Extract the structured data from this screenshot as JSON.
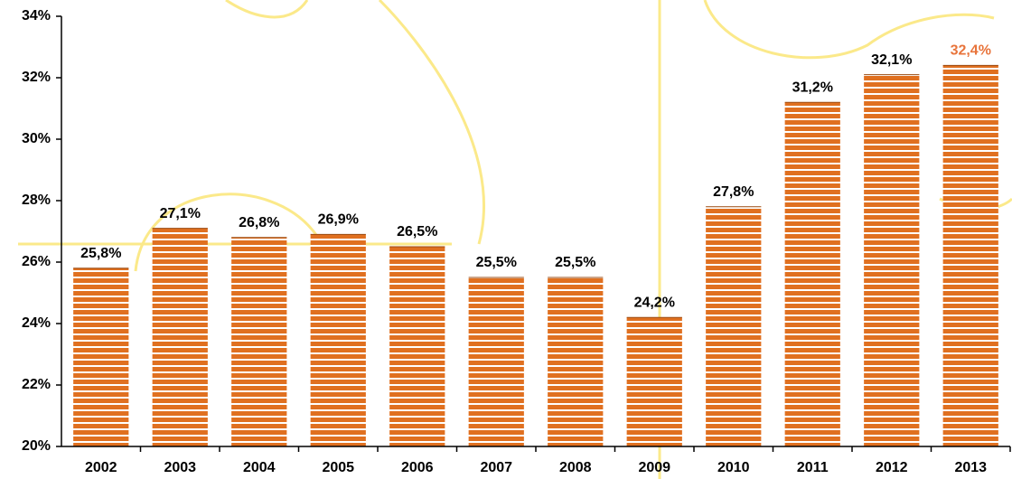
{
  "chart_data": {
    "type": "bar",
    "categories": [
      "2002",
      "2003",
      "2004",
      "2005",
      "2006",
      "2007",
      "2008",
      "2009",
      "2010",
      "2011",
      "2012",
      "2013"
    ],
    "values": [
      25.8,
      27.1,
      26.8,
      26.9,
      26.5,
      25.5,
      25.5,
      24.2,
      27.8,
      31.2,
      32.1,
      32.4
    ],
    "value_labels": [
      "25,8%",
      "27,1%",
      "26,8%",
      "26,9%",
      "26,5%",
      "25,5%",
      "25,5%",
      "24,2%",
      "27,8%",
      "31,2%",
      "32,1%",
      "32,4%"
    ],
    "value_label_colors": [
      "#000000",
      "#000000",
      "#000000",
      "#000000",
      "#000000",
      "#000000",
      "#000000",
      "#000000",
      "#000000",
      "#000000",
      "#000000",
      "#e8743b"
    ],
    "color": "#e07020",
    "ylim": [
      20,
      34
    ],
    "yticks": [
      {
        "value": 20,
        "label": "20%"
      },
      {
        "value": 22,
        "label": "22%"
      },
      {
        "value": 24,
        "label": "24%"
      },
      {
        "value": 26,
        "label": "26%"
      },
      {
        "value": 28,
        "label": "28%"
      },
      {
        "value": 30,
        "label": "30%"
      },
      {
        "value": 32,
        "label": "32%"
      },
      {
        "value": 34,
        "label": "34%"
      }
    ],
    "grid": false
  }
}
